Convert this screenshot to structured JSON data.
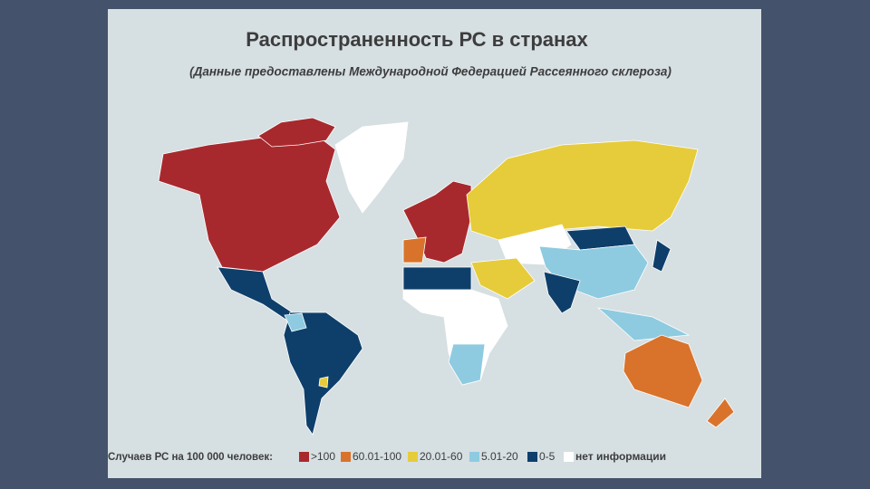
{
  "header": {
    "title": "Распространенность РС в странах",
    "subtitle": "(Данные предоставлены Международной Федерацией Рассеянного склероза)"
  },
  "legend": {
    "label": "Случаев РС на 100 000 человек:",
    "items": [
      {
        "label": ">100",
        "color": "#a8292d"
      },
      {
        "label": "60.01-100",
        "color": "#d9732b"
      },
      {
        "label": "20.01-60",
        "color": "#e6cc3a"
      },
      {
        "label": "5.01-20",
        "color": "#8ecbe0"
      },
      {
        "label": "0-5",
        "color": "#0e3f6b"
      },
      {
        "label": "нет информации",
        "color": "#ffffff"
      }
    ]
  }
}
